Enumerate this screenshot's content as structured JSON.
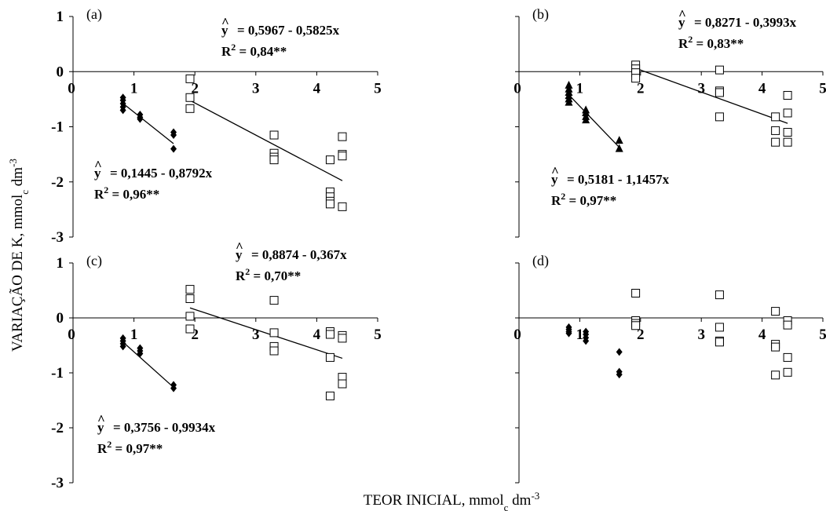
{
  "figure": {
    "xlabel": "TEOR INICIAL, mmol",
    "xlabel_sub": "c",
    "xlabel_tail": " dm",
    "xlabel_sup": "-3",
    "ylabel": "VARIAÇÃO DE K, mmol",
    "ylabel_sub": "c",
    "ylabel_tail": " dm",
    "ylabel_sup": "-3"
  },
  "chart_data": [
    {
      "panel": "(a)",
      "type": "scatter",
      "xlim": [
        0,
        5
      ],
      "ylim": [
        -3,
        1
      ],
      "xticks": [
        "0",
        "1",
        "2",
        "3",
        "4",
        "5"
      ],
      "yticks": [
        "1",
        "0",
        "-1",
        "-2",
        "-3"
      ],
      "series": [
        {
          "marker": "diamond",
          "points": [
            [
              0.82,
              -0.47
            ],
            [
              0.82,
              -0.52
            ],
            [
              0.82,
              -0.58
            ],
            [
              0.82,
              -0.64
            ],
            [
              0.82,
              -0.7
            ],
            [
              1.1,
              -0.78
            ],
            [
              1.1,
              -0.83
            ],
            [
              1.1,
              -0.86
            ],
            [
              1.65,
              -1.1
            ],
            [
              1.65,
              -1.15
            ],
            [
              1.65,
              -1.4
            ]
          ]
        },
        {
          "marker": "square",
          "points": [
            [
              1.92,
              -0.13
            ],
            [
              1.92,
              -0.47
            ],
            [
              1.92,
              -0.67
            ],
            [
              3.3,
              -1.15
            ],
            [
              3.3,
              -1.48
            ],
            [
              3.3,
              -1.55
            ],
            [
              3.3,
              -1.6
            ],
            [
              4.22,
              -1.6
            ],
            [
              4.22,
              -2.18
            ],
            [
              4.22,
              -2.27
            ],
            [
              4.22,
              -2.35
            ],
            [
              4.22,
              -2.4
            ],
            [
              4.42,
              -1.18
            ],
            [
              4.42,
              -1.5
            ],
            [
              4.42,
              -1.53
            ],
            [
              4.42,
              -2.45
            ]
          ]
        }
      ],
      "fits": [
        {
          "x1": 0.82,
          "x2": 1.65,
          "a": 0.1445,
          "b": -0.8792,
          "label": "= 0,1445 - 0,8792x",
          "r2": "= 0,96**"
        },
        {
          "x1": 1.92,
          "x2": 4.42,
          "a": 0.5967,
          "b": -0.5825,
          "label": "= 0,5967 - 0,5825x",
          "r2": "= 0,84**"
        }
      ]
    },
    {
      "panel": "(b)",
      "type": "scatter",
      "xlim": [
        0,
        5
      ],
      "ylim": [
        -3,
        1
      ],
      "xticks": [
        "0",
        "1",
        "2",
        "3",
        "4",
        "5"
      ],
      "yticks": [],
      "series": [
        {
          "marker": "triangle",
          "points": [
            [
              0.82,
              -0.25
            ],
            [
              0.82,
              -0.32
            ],
            [
              0.82,
              -0.38
            ],
            [
              0.82,
              -0.44
            ],
            [
              0.82,
              -0.5
            ],
            [
              0.82,
              -0.56
            ],
            [
              1.1,
              -0.7
            ],
            [
              1.1,
              -0.75
            ],
            [
              1.1,
              -0.82
            ],
            [
              1.1,
              -0.88
            ],
            [
              1.65,
              -1.25
            ],
            [
              1.65,
              -1.4
            ]
          ]
        },
        {
          "marker": "square",
          "points": [
            [
              1.92,
              0.12
            ],
            [
              1.92,
              0.05
            ],
            [
              1.92,
              -0.02
            ],
            [
              1.92,
              -0.12
            ],
            [
              3.3,
              0.03
            ],
            [
              3.3,
              -0.35
            ],
            [
              3.3,
              -0.38
            ],
            [
              3.3,
              -0.82
            ],
            [
              4.22,
              -0.82
            ],
            [
              4.22,
              -1.07
            ],
            [
              4.22,
              -1.28
            ],
            [
              4.42,
              -0.43
            ],
            [
              4.42,
              -0.75
            ],
            [
              4.42,
              -1.1
            ],
            [
              4.42,
              -1.28
            ]
          ]
        }
      ],
      "fits": [
        {
          "x1": 0.82,
          "x2": 1.65,
          "a": 0.5181,
          "b": -1.1457,
          "label": "= 0,5181 - 1,1457x",
          "r2": "= 0,97**"
        },
        {
          "x1": 1.92,
          "x2": 4.42,
          "a": 0.8271,
          "b": -0.3993,
          "label": "= 0,8271 - 0,3993x",
          "r2": "= 0,83**"
        }
      ]
    },
    {
      "panel": "(c)",
      "type": "scatter",
      "xlim": [
        0,
        5
      ],
      "ylim": [
        -3,
        1
      ],
      "xticks": [
        "0",
        "1",
        "2",
        "3",
        "4",
        "5"
      ],
      "yticks": [
        "1",
        "0",
        "-1",
        "-2",
        "-3"
      ],
      "series": [
        {
          "marker": "diamond",
          "points": [
            [
              0.82,
              -0.37
            ],
            [
              0.82,
              -0.42
            ],
            [
              0.82,
              -0.47
            ],
            [
              0.82,
              -0.52
            ],
            [
              1.1,
              -0.55
            ],
            [
              1.1,
              -0.6
            ],
            [
              1.1,
              -0.65
            ],
            [
              1.65,
              -1.22
            ],
            [
              1.65,
              -1.28
            ]
          ]
        },
        {
          "marker": "square",
          "points": [
            [
              1.92,
              0.52
            ],
            [
              1.92,
              0.35
            ],
            [
              1.92,
              0.03
            ],
            [
              1.92,
              -0.2
            ],
            [
              3.3,
              0.32
            ],
            [
              3.3,
              -0.27
            ],
            [
              3.3,
              -0.52
            ],
            [
              3.3,
              -0.6
            ],
            [
              4.22,
              -0.25
            ],
            [
              4.22,
              -0.3
            ],
            [
              4.22,
              -0.72
            ],
            [
              4.22,
              -1.42
            ],
            [
              4.42,
              -0.32
            ],
            [
              4.42,
              -0.37
            ],
            [
              4.42,
              -1.08
            ],
            [
              4.42,
              -1.2
            ]
          ]
        }
      ],
      "fits": [
        {
          "x1": 0.82,
          "x2": 1.65,
          "a": 0.3756,
          "b": -0.9934,
          "label": "= 0,3756 - 0,9934x",
          "r2": "= 0,97**"
        },
        {
          "x1": 1.92,
          "x2": 4.42,
          "a": 0.8874,
          "b": -0.367,
          "label": "= 0,8874 - 0,367x",
          "r2": "= 0,70**"
        }
      ]
    },
    {
      "panel": "(d)",
      "type": "scatter",
      "xlim": [
        0,
        5
      ],
      "ylim": [
        -3,
        1
      ],
      "xticks": [
        "0",
        "1",
        "2",
        "3",
        "4",
        "5"
      ],
      "yticks": [],
      "series": [
        {
          "marker": "diamond",
          "points": [
            [
              0.82,
              -0.17
            ],
            [
              0.82,
              -0.21
            ],
            [
              0.82,
              -0.25
            ],
            [
              0.82,
              -0.28
            ],
            [
              1.1,
              -0.25
            ],
            [
              1.1,
              -0.3
            ],
            [
              1.1,
              -0.36
            ],
            [
              1.1,
              -0.42
            ],
            [
              1.65,
              -0.62
            ],
            [
              1.65,
              -0.98
            ],
            [
              1.65,
              -1.03
            ]
          ]
        },
        {
          "marker": "square",
          "points": [
            [
              1.92,
              0.45
            ],
            [
              1.92,
              -0.05
            ],
            [
              1.92,
              -0.1
            ],
            [
              1.92,
              -0.14
            ],
            [
              3.3,
              0.42
            ],
            [
              3.3,
              -0.17
            ],
            [
              3.3,
              -0.42
            ],
            [
              3.3,
              -0.44
            ],
            [
              4.22,
              0.12
            ],
            [
              4.22,
              -0.48
            ],
            [
              4.22,
              -0.53
            ],
            [
              4.22,
              -1.04
            ],
            [
              4.42,
              -0.05
            ],
            [
              4.42,
              -0.13
            ],
            [
              4.42,
              -0.72
            ],
            [
              4.42,
              -0.99
            ]
          ]
        }
      ],
      "fits": []
    }
  ]
}
